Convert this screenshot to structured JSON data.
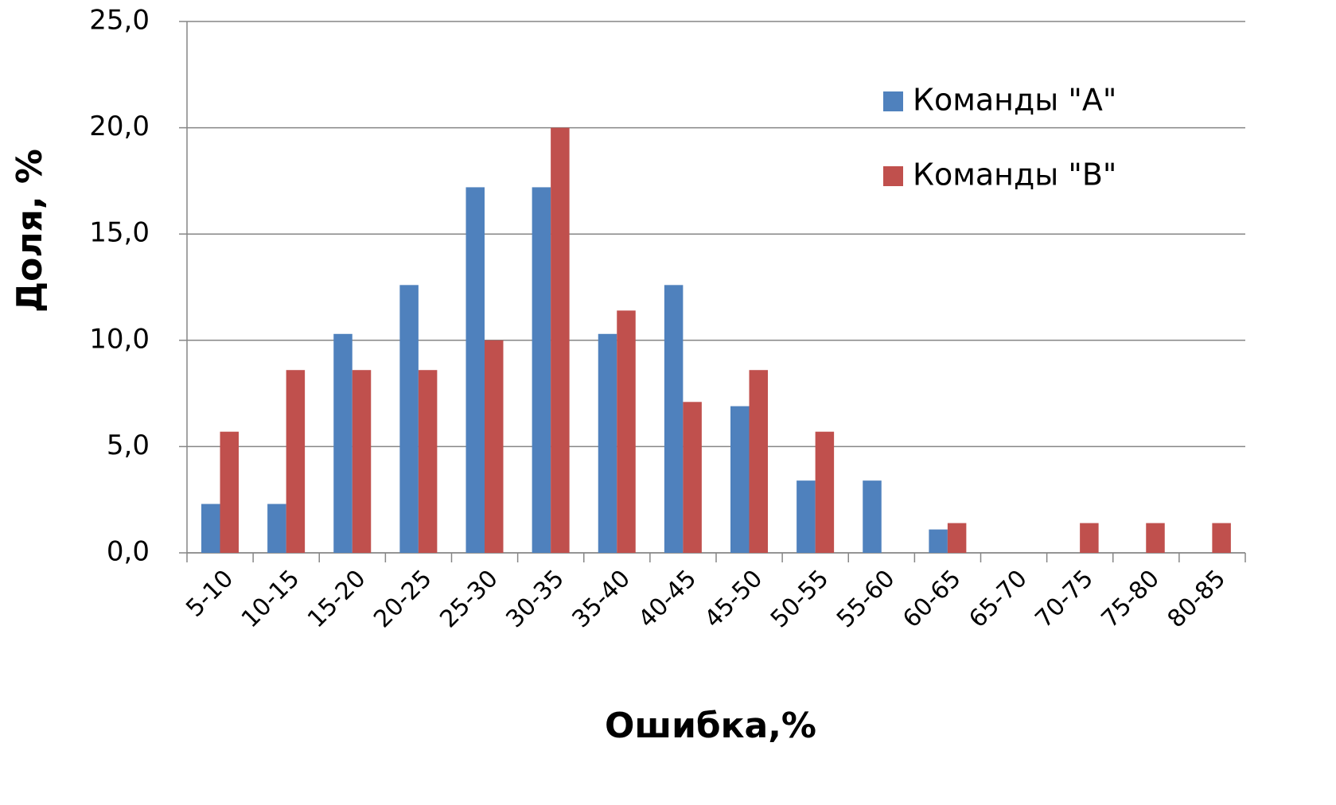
{
  "chart_data": {
    "type": "bar",
    "x_label": "Ошибка,%",
    "y_label": "Доля, %",
    "categories": [
      "5-10",
      "10-15",
      "15-20",
      "20-25",
      "25-30",
      "30-35",
      "35-40",
      "40-45",
      "45-50",
      "50-55",
      "55-60",
      "60-65",
      "65-70",
      "70-75",
      "75-80",
      "80-85"
    ],
    "series": [
      {
        "name": "Команды \"A\"",
        "color": "#4f81bd",
        "values": [
          2.3,
          2.3,
          10.3,
          12.6,
          17.2,
          17.2,
          10.3,
          12.6,
          6.9,
          3.4,
          3.4,
          1.1,
          0,
          0,
          0,
          0
        ]
      },
      {
        "name": "Команды \"B\"",
        "color": "#c0504d",
        "values": [
          5.7,
          8.6,
          8.6,
          8.6,
          10.0,
          20.0,
          11.4,
          7.1,
          8.6,
          5.7,
          0,
          1.4,
          0,
          1.4,
          1.4,
          1.4
        ]
      }
    ],
    "ylim": [
      0,
      25
    ],
    "yticks": [
      {
        "value": 0,
        "label": "0,0"
      },
      {
        "value": 5,
        "label": "5,0"
      },
      {
        "value": 10,
        "label": "10,0"
      },
      {
        "value": 15,
        "label": "15,0"
      },
      {
        "value": 20,
        "label": "20,0"
      },
      {
        "value": 25,
        "label": "25,0"
      }
    ],
    "grid": true,
    "legend": "upper right"
  }
}
